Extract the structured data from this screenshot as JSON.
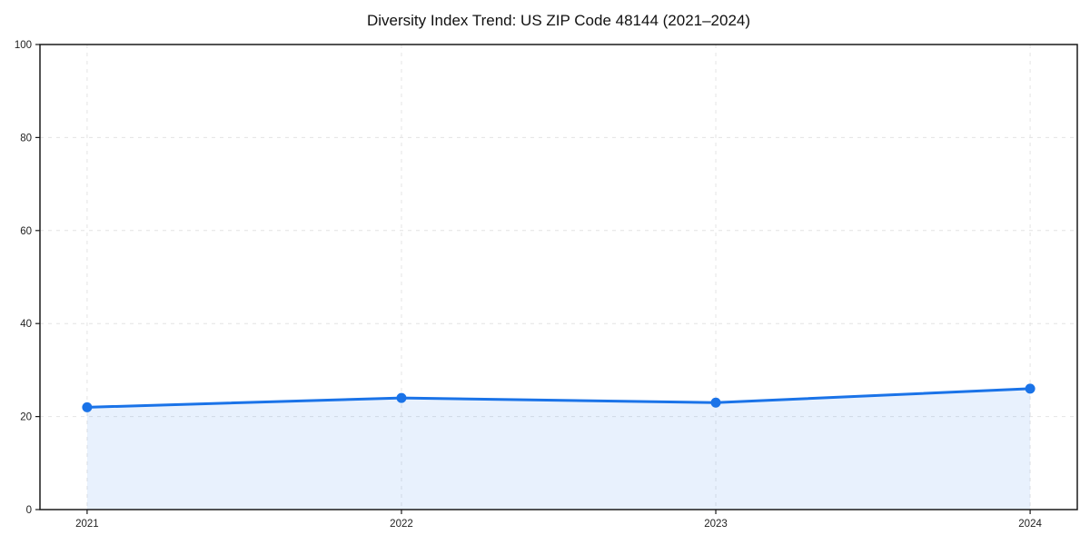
{
  "chart_data": {
    "type": "area",
    "title": "Diversity Index Trend: US ZIP Code 48144 (2021–2024)",
    "categories": [
      "2021",
      "2022",
      "2023",
      "2024"
    ],
    "series": [
      {
        "name": "Diversity Index",
        "values": [
          22,
          24,
          23,
          26
        ]
      }
    ],
    "xlabel": "",
    "ylabel": "",
    "ylim": [
      0,
      100
    ],
    "yticks": [
      0,
      20,
      40,
      60,
      80,
      100
    ],
    "grid": "dashed-both-axes",
    "legend": "none",
    "marker": "circle",
    "colors": {
      "line": "#1a73e8",
      "marker": "#1a73e8",
      "fill": "rgba(26,115,232,0.10)",
      "grid": "#e4e4e4",
      "spine": "#1a1a1a",
      "tick_text": "#222222",
      "background": "#ffffff"
    }
  }
}
